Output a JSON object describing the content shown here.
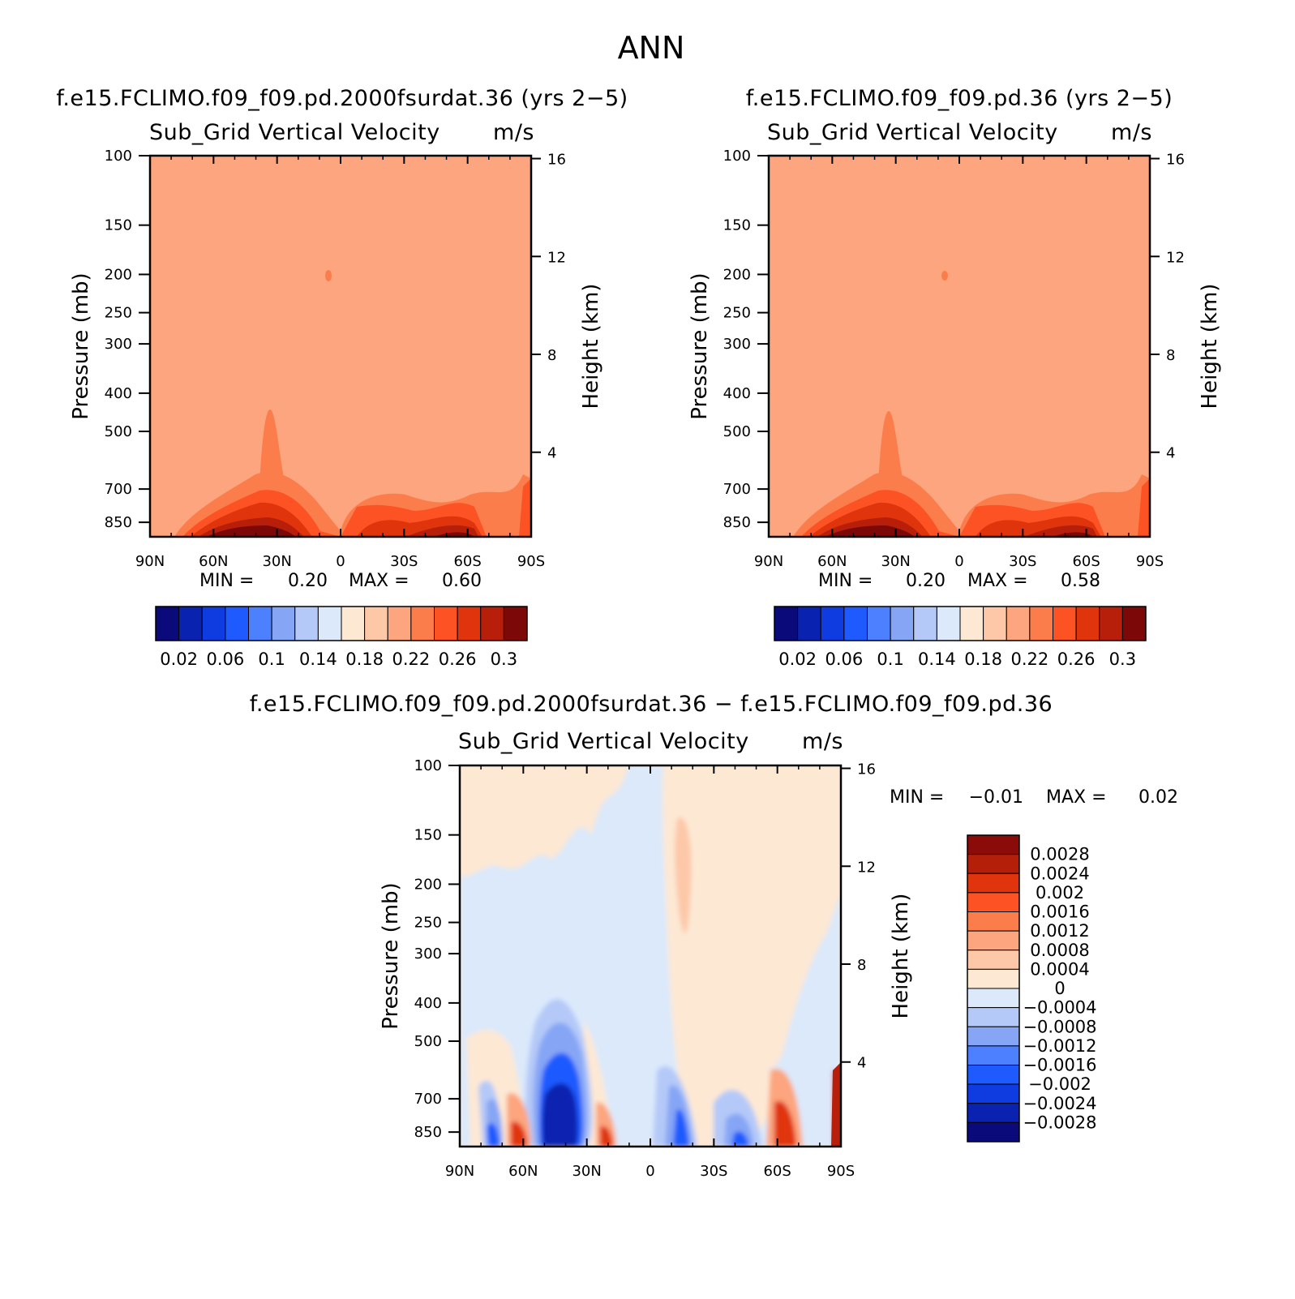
{
  "figure": {
    "title": "ANN"
  },
  "colorbar_top": {
    "colors": [
      "#0a0a7a",
      "#0a22b0",
      "#0f3ce0",
      "#1f5aff",
      "#4d80ff",
      "#86a6f5",
      "#b5c9f8",
      "#dbe9fb",
      "#fde8d4",
      "#fdc8a8",
      "#fca57e",
      "#fc7d4c",
      "#fc5224",
      "#e0340c",
      "#b81f0a",
      "#7d0808"
    ],
    "labels": [
      "0.02",
      "0.06",
      "0.1",
      "0.14",
      "0.18",
      "0.22",
      "0.26",
      "0.3"
    ]
  },
  "colorbar_diff": {
    "colors_top_to_bottom": [
      "#8a0b08",
      "#b41f0a",
      "#e0340c",
      "#fc5224",
      "#fc7d4c",
      "#fca57e",
      "#fdc8a8",
      "#fde8d4",
      "#dbe9fb",
      "#b5c9f8",
      "#86a6f5",
      "#4d80ff",
      "#1f5aff",
      "#0f3ce0",
      "#0a22b0",
      "#0a0a7a"
    ],
    "labels": [
      "0.0028",
      "0.0024",
      "0.002",
      "0.0016",
      "0.0012",
      "0.0008",
      "0.0004",
      "0",
      "−0.0004",
      "−0.0008",
      "−0.0012",
      "−0.0016",
      "−0.002",
      "−0.0024",
      "−0.0028"
    ]
  },
  "chart_data": [
    {
      "type": "heatmap",
      "title": "f.e15.FCLIMO.f09_f09.pd.2000fsurdat.36 (yrs 2−5)",
      "subtitle_left": "Sub_Grid Vertical Velocity",
      "subtitle_right": "m/s",
      "ylabel": "Pressure (mb)",
      "y2label": "Height (km)",
      "xticks": [
        "90N",
        "60N",
        "30N",
        "0",
        "30S",
        "60S",
        "90S"
      ],
      "yticks": [
        "100",
        "150",
        "200",
        "250",
        "300",
        "400",
        "500",
        "700",
        "850"
      ],
      "y2ticks": [
        "16",
        "12",
        "8",
        "4"
      ],
      "background_value_color": "#fca57e",
      "min_label": "MIN =",
      "min": "0.20",
      "max_label": "MAX =",
      "max": "0.60"
    },
    {
      "type": "heatmap",
      "title": "f.e15.FCLIMO.f09_f09.pd.36 (yrs 2−5)",
      "subtitle_left": "Sub_Grid Vertical Velocity",
      "subtitle_right": "m/s",
      "ylabel": "Pressure (mb)",
      "y2label": "Height (km)",
      "xticks": [
        "90N",
        "60N",
        "30N",
        "0",
        "30S",
        "60S",
        "90S"
      ],
      "yticks": [
        "100",
        "150",
        "200",
        "250",
        "300",
        "400",
        "500",
        "700",
        "850"
      ],
      "y2ticks": [
        "16",
        "12",
        "8",
        "4"
      ],
      "background_value_color": "#fca57e",
      "min_label": "MIN =",
      "min": "0.20",
      "max_label": "MAX =",
      "max": "0.58"
    },
    {
      "type": "heatmap",
      "title": "f.e15.FCLIMO.f09_f09.pd.2000fsurdat.36 − f.e15.FCLIMO.f09_f09.pd.36",
      "subtitle_left": "Sub_Grid Vertical Velocity",
      "subtitle_right": "m/s",
      "ylabel": "Pressure (mb)",
      "y2label": "Height (km)",
      "xticks": [
        "90N",
        "60N",
        "30N",
        "0",
        "30S",
        "60S",
        "90S"
      ],
      "yticks": [
        "100",
        "150",
        "200",
        "250",
        "300",
        "400",
        "500",
        "700",
        "850"
      ],
      "y2ticks": [
        "16",
        "12",
        "8",
        "4"
      ],
      "min_label": "MIN =",
      "min": "−0.01",
      "max_label": "MAX =",
      "max": "0.02"
    }
  ]
}
